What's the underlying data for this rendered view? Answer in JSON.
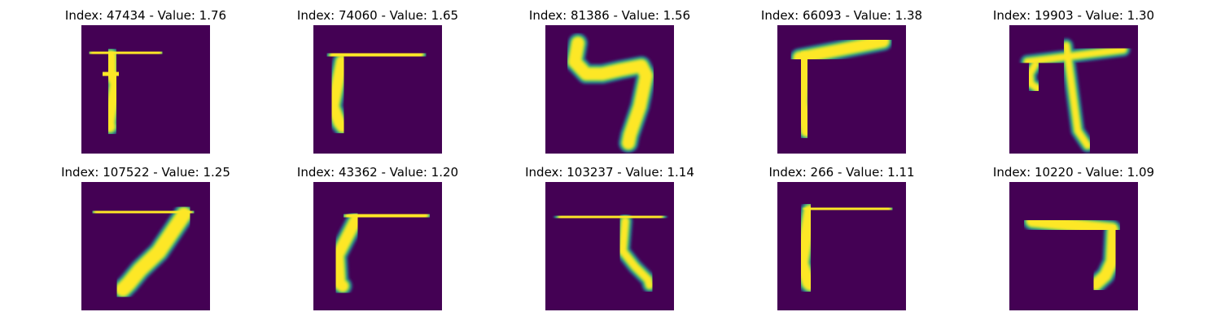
{
  "colors": {
    "background": "#440154",
    "edge_dark": "#31688e",
    "edge_mid": "#21918c",
    "edge_light": "#5ec962",
    "stroke": "#fde725"
  },
  "panels": [
    {
      "index": "47434",
      "value": "1.76",
      "title": "Index: 47434 - Value: 1.76",
      "image": {
        "content": "handwritten digit, resembling a 7 with a top bar",
        "paths": [
          [
            [
              17,
              35
            ],
            [
              92,
              33
            ]
          ],
          [
            [
              36,
              38
            ],
            [
              36,
              59
            ],
            [
              42,
              72
            ],
            [
              38,
              94
            ],
            [
              34,
              120
            ],
            [
              35,
              125
            ]
          ],
          [
            [
              28,
              62
            ],
            [
              44,
              58
            ]
          ]
        ],
        "width": 13
      }
    },
    {
      "index": "74060",
      "value": "1.65",
      "title": "Index: 74060 - Value: 1.65",
      "image": {
        "content": "handwritten digit, resembling an L rotated (7 shape)",
        "paths": [
          [
            [
              27,
              38
            ],
            [
              128,
              35
            ]
          ],
          [
            [
              35,
              45
            ],
            [
              28,
              80
            ],
            [
              24,
              100
            ],
            [
              32,
              120
            ],
            [
              36,
              125
            ]
          ]
        ],
        "width": 14
      }
    },
    {
      "index": "81386",
      "value": "1.56",
      "title": "Index: 81386 - Value: 1.56",
      "image": {
        "content": "handwritten digit, resembling a 4 or 9",
        "paths": [
          [
            [
              40,
              22
            ],
            [
              36,
              45
            ],
            [
              50,
              60
            ],
            [
              70,
              60
            ],
            [
              92,
              55
            ],
            [
              118,
              50
            ],
            [
              124,
              62
            ],
            [
              116,
              100
            ],
            [
              104,
              135
            ],
            [
              102,
              145
            ]
          ]
        ],
        "width": 15
      }
    },
    {
      "index": "66093",
      "value": "1.38",
      "title": "Index: 66093 - Value: 1.38",
      "image": {
        "content": "handwritten digit, resembling a 7",
        "paths": [
          [
            [
              27,
              40
            ],
            [
              130,
              20
            ]
          ],
          [
            [
              33,
              40
            ],
            [
              30,
              95
            ],
            [
              35,
              125
            ],
            [
              36,
              130
            ]
          ]
        ],
        "width": 14
      }
    },
    {
      "index": "19903",
      "value": "1.30",
      "title": "Index: 19903 - Value: 1.30",
      "image": {
        "content": "handwritten digit, stroke with a cross bar and hook",
        "paths": [
          [
            [
              22,
              45
            ],
            [
              140,
              30
            ]
          ],
          [
            [
              70,
              25
            ],
            [
              84,
              130
            ],
            [
              96,
              148
            ]
          ],
          [
            [
              32,
              48
            ],
            [
              25,
              60
            ],
            [
              26,
              72
            ],
            [
              35,
              78
            ]
          ]
        ],
        "width": 8
      }
    },
    {
      "index": "107522",
      "value": "1.25",
      "title": "Index: 107522 - Value: 1.25",
      "image": {
        "content": "handwritten digit 7",
        "paths": [
          [
            [
              24,
              36
            ],
            [
              128,
              38
            ]
          ],
          [
            [
              126,
              40
            ],
            [
              95,
              86
            ],
            [
              72,
              108
            ],
            [
              58,
              125
            ],
            [
              51,
              132
            ]
          ]
        ],
        "width": 17
      }
    },
    {
      "index": "43362",
      "value": "1.20",
      "title": "Index: 43362 - Value: 1.20",
      "image": {
        "content": "handwritten digit, resembling a 7",
        "paths": [
          [
            [
              46,
              43
            ],
            [
              134,
              40
            ]
          ],
          [
            [
              52,
              47
            ],
            [
              30,
              90
            ],
            [
              32,
              125
            ],
            [
              36,
              128
            ]
          ]
        ],
        "width": 14
      }
    },
    {
      "index": "103237",
      "value": "1.14",
      "title": "Index: 103237 - Value: 1.14",
      "image": {
        "content": "handwritten digit, resembling a T shape",
        "paths": [
          [
            [
              20,
              44
            ],
            [
              140,
              42
            ]
          ],
          [
            [
              98,
              48
            ],
            [
              95,
              85
            ],
            [
              110,
              104
            ],
            [
              126,
              120
            ],
            [
              128,
              127
            ]
          ]
        ],
        "width": 9
      }
    },
    {
      "index": "266",
      "value": "1.11",
      "title": "Index: 266 - Value: 1.11",
      "image": {
        "content": "handwritten digit, resembling a 7",
        "paths": [
          [
            [
              40,
              32
            ],
            [
              132,
              34
            ]
          ],
          [
            [
              40,
              36
            ],
            [
              30,
              100
            ],
            [
              38,
              124
            ],
            [
              40,
              126
            ]
          ]
        ],
        "width": 15
      }
    },
    {
      "index": "10220",
      "value": "1.09",
      "title": "Index: 10220 - Value: 1.09",
      "image": {
        "content": "handwritten digit 7",
        "paths": [
          [
            [
              28,
              48
            ],
            [
              126,
              58
            ]
          ],
          [
            [
              128,
              60
            ],
            [
              126,
              98
            ],
            [
              118,
              115
            ],
            [
              106,
              126
            ]
          ]
        ],
        "width": 14
      }
    }
  ]
}
